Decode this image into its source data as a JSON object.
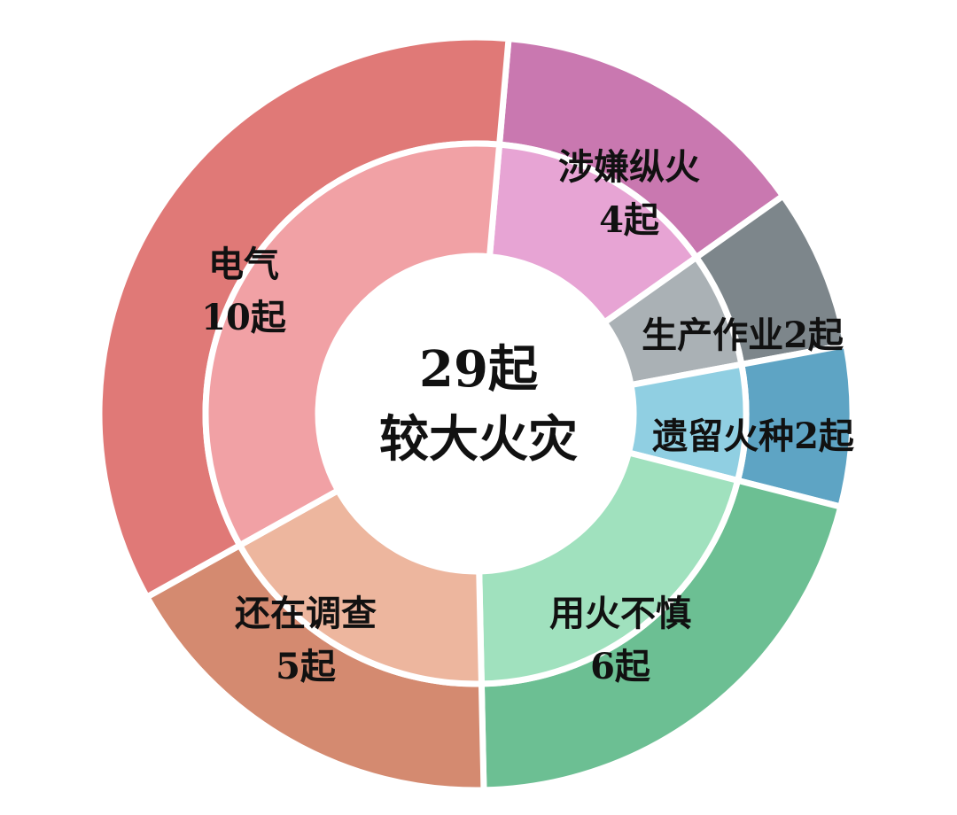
{
  "chart_data": {
    "type": "pie",
    "variant": "donut",
    "center_text": [
      "29起",
      "较大火灾"
    ],
    "total": 29,
    "categories": [
      "涉嫌纵火",
      "生产作业",
      "遗留火种",
      "用火不慎",
      "还在调查",
      "电气"
    ],
    "values": [
      4,
      2,
      2,
      6,
      5,
      10
    ],
    "labels": [
      [
        "涉嫌纵火",
        "4起"
      ],
      [
        "生产作业2起"
      ],
      [
        "遗留火种2起"
      ],
      [
        "用火不慎",
        "6起"
      ],
      [
        "还在调查",
        "5起"
      ],
      [
        "电气",
        "10起"
      ]
    ],
    "colors_outer": [
      "#c978b0",
      "#7d868b",
      "#5ea4c4",
      "#6cbf93",
      "#d48a70",
      "#e07977"
    ],
    "colors_inner": [
      "#e7a4d4",
      "#aab1b5",
      "#90cfe2",
      "#a0e1be",
      "#edb69e",
      "#f1a1a5"
    ],
    "legend": "none"
  }
}
